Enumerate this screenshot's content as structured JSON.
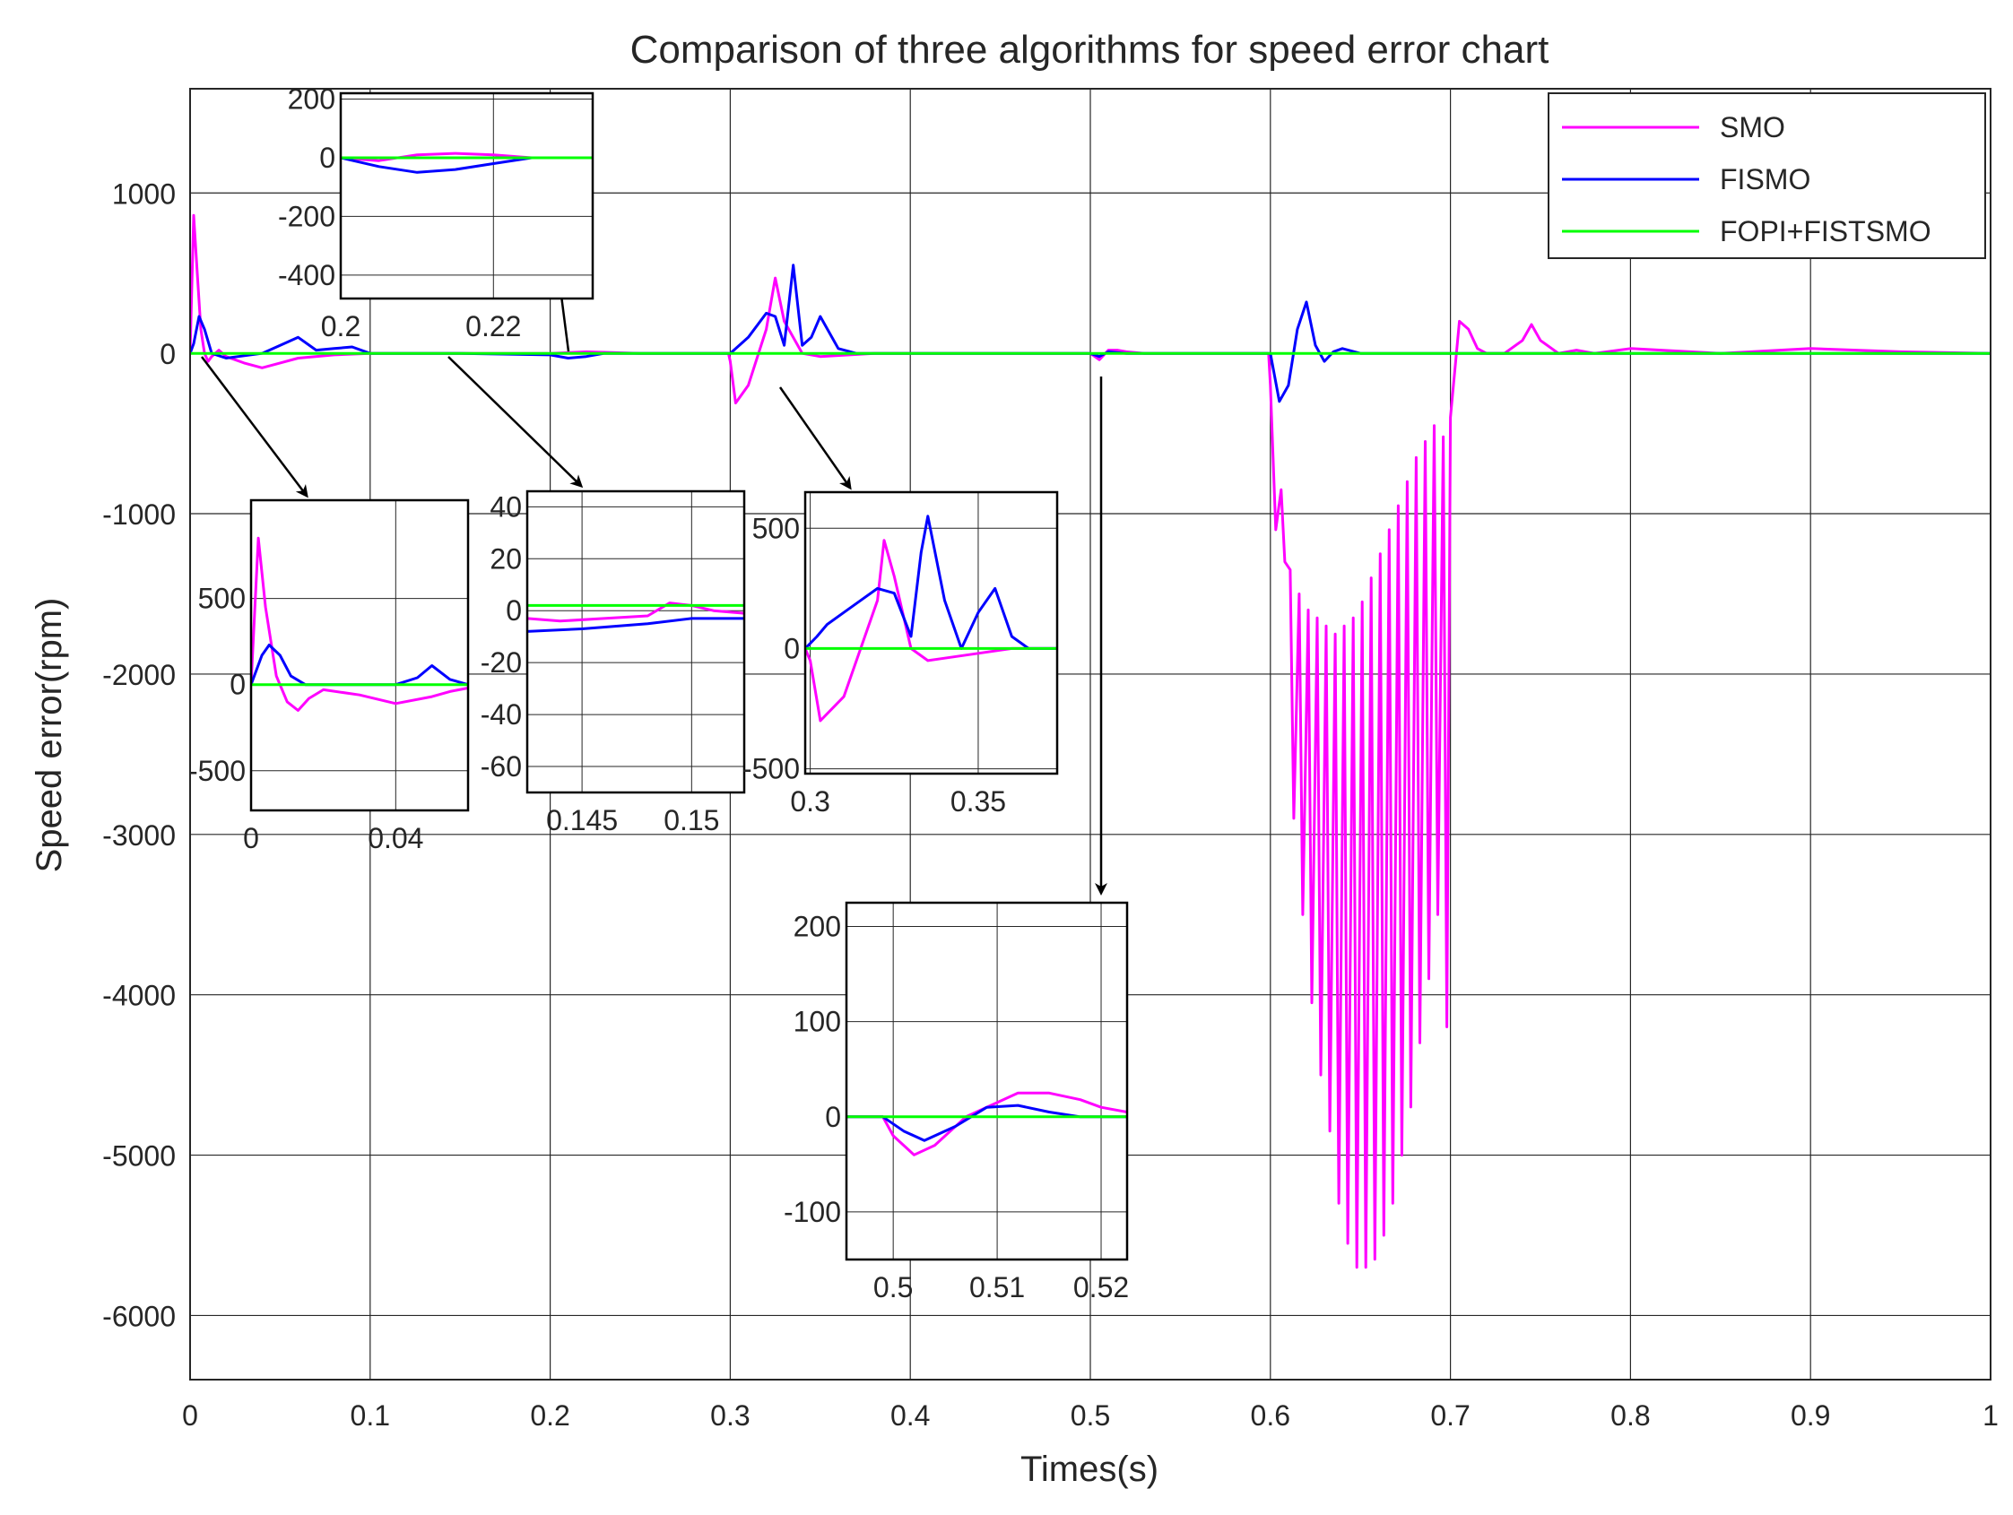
{
  "chart_data": {
    "type": "line",
    "title": "Comparison of three algorithms for speed error chart",
    "xlabel": "Times(s)",
    "ylabel": "Speed error(rpm)",
    "xlim": [
      0,
      1
    ],
    "ylim": [
      -6400,
      1650
    ],
    "x_ticks": [
      0,
      0.1,
      0.2,
      0.3,
      0.4,
      0.5,
      0.6,
      0.7,
      0.8,
      0.9,
      1
    ],
    "x_tick_labels": [
      "0",
      "0.1",
      "0.2",
      "0.3",
      "0.4",
      "0.5",
      "0.6",
      "0.7",
      "0.8",
      "0.9",
      "1"
    ],
    "y_ticks": [
      1000,
      0,
      -1000,
      -2000,
      -3000,
      -4000,
      -5000,
      -6000
    ],
    "y_tick_labels": [
      "1000",
      "0",
      "-1000",
      "-2000",
      "-3000",
      "-4000",
      "-5000",
      "-6000"
    ],
    "grid": true,
    "legend_position": "top-right",
    "colors": {
      "SMO": "#ff00ff",
      "FISMO": "#0000ff",
      "FOPI+FISTSMO": "#00ff00"
    },
    "series": [
      {
        "name": "SMO",
        "x": [
          0,
          0.002,
          0.004,
          0.006,
          0.008,
          0.01,
          0.012,
          0.016,
          0.02,
          0.03,
          0.04,
          0.05,
          0.06,
          0.08,
          0.1,
          0.15,
          0.2,
          0.22,
          0.25,
          0.299,
          0.3,
          0.303,
          0.31,
          0.32,
          0.325,
          0.33,
          0.34,
          0.35,
          0.38,
          0.4,
          0.5,
          0.505,
          0.51,
          0.515,
          0.52,
          0.53,
          0.599,
          0.6,
          0.603,
          0.606,
          0.608,
          0.611,
          0.613,
          0.616,
          0.618,
          0.621,
          0.623,
          0.626,
          0.628,
          0.631,
          0.633,
          0.636,
          0.638,
          0.641,
          0.643,
          0.646,
          0.648,
          0.651,
          0.653,
          0.656,
          0.658,
          0.661,
          0.663,
          0.666,
          0.668,
          0.671,
          0.673,
          0.676,
          0.678,
          0.681,
          0.683,
          0.686,
          0.688,
          0.691,
          0.693,
          0.696,
          0.698,
          0.7,
          0.705,
          0.71,
          0.715,
          0.72,
          0.73,
          0.74,
          0.745,
          0.75,
          0.76,
          0.77,
          0.78,
          0.8,
          0.85,
          0.9,
          0.95,
          1.0
        ],
        "y": [
          0,
          860,
          500,
          150,
          0,
          -50,
          -20,
          20,
          -20,
          -60,
          -90,
          -60,
          -30,
          -10,
          0,
          0,
          0,
          10,
          0,
          0,
          -50,
          -310,
          -200,
          150,
          470,
          200,
          0,
          -20,
          0,
          0,
          0,
          -40,
          20,
          20,
          10,
          0,
          0,
          -200,
          -1100,
          -850,
          -1300,
          -1350,
          -2900,
          -1500,
          -3500,
          -1600,
          -4050,
          -1650,
          -4500,
          -1700,
          -4850,
          -1750,
          -5300,
          -1700,
          -5550,
          -1650,
          -5700,
          -1550,
          -5700,
          -1400,
          -5650,
          -1250,
          -5500,
          -1100,
          -5300,
          -950,
          -5000,
          -800,
          -4700,
          -650,
          -4300,
          -550,
          -3900,
          -450,
          -3500,
          -520,
          -4200,
          -400,
          200,
          150,
          30,
          0,
          0,
          80,
          180,
          80,
          0,
          20,
          0,
          30,
          0,
          30,
          10,
          0
        ]
      },
      {
        "name": "FISMO",
        "x": [
          0,
          0.002,
          0.005,
          0.008,
          0.012,
          0.02,
          0.04,
          0.06,
          0.07,
          0.08,
          0.09,
          0.1,
          0.15,
          0.2,
          0.21,
          0.22,
          0.23,
          0.3,
          0.31,
          0.32,
          0.325,
          0.33,
          0.335,
          0.34,
          0.345,
          0.35,
          0.36,
          0.37,
          0.38,
          0.4,
          0.5,
          0.505,
          0.51,
          0.52,
          0.53,
          0.6,
          0.605,
          0.61,
          0.615,
          0.62,
          0.625,
          0.63,
          0.635,
          0.64,
          0.65,
          0.7,
          1.0
        ],
        "y": [
          0,
          60,
          230,
          150,
          0,
          -30,
          0,
          100,
          20,
          30,
          40,
          0,
          0,
          -10,
          -30,
          -20,
          0,
          0,
          100,
          250,
          230,
          50,
          550,
          50,
          100,
          230,
          30,
          0,
          0,
          0,
          0,
          -20,
          10,
          0,
          0,
          0,
          -300,
          -200,
          150,
          320,
          50,
          -50,
          10,
          30,
          0,
          0,
          0
        ]
      },
      {
        "name": "FOPI+FISTSMO",
        "x": [
          0,
          1.0
        ],
        "y": [
          0,
          0
        ]
      }
    ],
    "insets": [
      {
        "xlim": [
          0,
          0.06
        ],
        "ylim": [
          -730,
          1070
        ],
        "x_ticks": [
          0,
          0.04
        ],
        "x_tick_labels": [
          "0",
          "0.04"
        ],
        "y_ticks": [
          500,
          0,
          -500
        ],
        "y_tick_labels": [
          "500",
          "0",
          "-500"
        ],
        "series": [
          {
            "name": "SMO",
            "x": [
              0,
              0.002,
              0.004,
              0.007,
              0.01,
              0.013,
              0.016,
              0.02,
              0.03,
              0.04,
              0.05,
              0.055,
              0.06
            ],
            "y": [
              0,
              850,
              450,
              50,
              -100,
              -150,
              -80,
              -30,
              -60,
              -110,
              -70,
              -40,
              -20
            ]
          },
          {
            "name": "FISMO",
            "x": [
              0,
              0.003,
              0.005,
              0.008,
              0.011,
              0.015,
              0.02,
              0.04,
              0.046,
              0.05,
              0.055,
              0.06
            ],
            "y": [
              0,
              170,
              230,
              170,
              50,
              0,
              0,
              0,
              40,
              110,
              30,
              0
            ]
          },
          {
            "name": "FOPI+FISTSMO",
            "x": [
              0,
              0.06
            ],
            "y": [
              0,
              0
            ]
          }
        ]
      },
      {
        "xlim": [
          0.1425,
          0.1524
        ],
        "ylim": [
          -70,
          46
        ],
        "x_ticks": [
          0.145,
          0.15
        ],
        "x_tick_labels": [
          "0.145",
          "0.15"
        ],
        "y_ticks": [
          40,
          20,
          0,
          -20,
          -40,
          -60
        ],
        "y_tick_labels": [
          "40",
          "20",
          "0",
          "-20",
          "-40",
          "-60"
        ],
        "series": [
          {
            "name": "SMO",
            "x": [
              0.1425,
              0.144,
              0.146,
              0.148,
              0.149,
              0.15,
              0.151,
              0.1524
            ],
            "y": [
              -3,
              -4,
              -3,
              -2,
              3,
              2,
              0,
              -1
            ]
          },
          {
            "name": "FISMO",
            "x": [
              0.1425,
              0.145,
              0.148,
              0.15,
              0.1524
            ],
            "y": [
              -8,
              -7,
              -5,
              -3,
              -3
            ]
          },
          {
            "name": "FOPI+FISTSMO",
            "x": [
              0.1425,
              0.1524
            ],
            "y": [
              2,
              2
            ]
          }
        ]
      },
      {
        "xlim": [
          0.2,
          0.233
        ],
        "ylim": [
          -480,
          220
        ],
        "x_ticks": [
          0.2,
          0.22
        ],
        "x_tick_labels": [
          "0.2",
          "0.22"
        ],
        "y_ticks": [
          200,
          0,
          -200,
          -400
        ],
        "y_tick_labels": [
          "200",
          "0",
          "-200",
          "-400"
        ],
        "series": [
          {
            "name": "SMO",
            "x": [
              0.2,
              0.205,
              0.21,
              0.215,
              0.22,
              0.225,
              0.233
            ],
            "y": [
              0,
              -10,
              10,
              15,
              10,
              0,
              0
            ]
          },
          {
            "name": "FISMO",
            "x": [
              0.2,
              0.205,
              0.21,
              0.215,
              0.22,
              0.225,
              0.233
            ],
            "y": [
              0,
              -30,
              -50,
              -40,
              -20,
              0,
              0
            ]
          },
          {
            "name": "FOPI+FISTSMO",
            "x": [
              0.2,
              0.233
            ],
            "y": [
              0,
              0
            ]
          }
        ]
      },
      {
        "xlim": [
          0.2985,
          0.3735
        ],
        "ylim": [
          -520,
          650
        ],
        "x_ticks": [
          0.3,
          0.35
        ],
        "x_tick_labels": [
          "0.3",
          "0.35"
        ],
        "y_ticks": [
          500,
          0,
          -500
        ],
        "y_tick_labels": [
          "500",
          "0",
          "-500"
        ],
        "series": [
          {
            "name": "SMO",
            "x": [
              0.2985,
              0.3,
              0.303,
              0.31,
              0.32,
              0.322,
              0.325,
              0.33,
              0.335,
              0.34,
              0.35,
              0.36,
              0.3735
            ],
            "y": [
              0,
              -50,
              -300,
              -200,
              200,
              450,
              300,
              0,
              -50,
              -40,
              -20,
              0,
              0
            ]
          },
          {
            "name": "FISMO",
            "x": [
              0.2985,
              0.302,
              0.305,
              0.31,
              0.315,
              0.32,
              0.325,
              0.33,
              0.333,
              0.335,
              0.34,
              0.345,
              0.35,
              0.355,
              0.36,
              0.365,
              0.3735
            ],
            "y": [
              0,
              50,
              100,
              150,
              200,
              250,
              230,
              50,
              400,
              550,
              200,
              0,
              150,
              250,
              50,
              0,
              0
            ]
          },
          {
            "name": "FOPI+FISTSMO",
            "x": [
              0.2985,
              0.3735
            ],
            "y": [
              0,
              0
            ]
          }
        ]
      },
      {
        "xlim": [
          0.4955,
          0.5225
        ],
        "ylim": [
          -150,
          225
        ],
        "x_ticks": [
          0.5,
          0.51,
          0.52
        ],
        "x_tick_labels": [
          "0.5",
          "0.51",
          "0.52"
        ],
        "y_ticks": [
          200,
          100,
          0,
          -100
        ],
        "y_tick_labels": [
          "200",
          "100",
          "0",
          "-100"
        ],
        "series": [
          {
            "name": "SMO",
            "x": [
              0.4955,
              0.499,
              0.5,
              0.502,
              0.504,
              0.507,
              0.51,
              0.512,
              0.515,
              0.518,
              0.52,
              0.5225
            ],
            "y": [
              0,
              0,
              -20,
              -40,
              -30,
              0,
              15,
              25,
              25,
              18,
              10,
              5
            ]
          },
          {
            "name": "FISMO",
            "x": [
              0.4955,
              0.499,
              0.501,
              0.503,
              0.506,
              0.509,
              0.512,
              0.515,
              0.518,
              0.5225
            ],
            "y": [
              0,
              0,
              -15,
              -25,
              -10,
              10,
              12,
              5,
              0,
              0
            ]
          },
          {
            "name": "FOPI+FISTSMO",
            "x": [
              0.4955,
              0.5225
            ],
            "y": [
              0,
              0
            ]
          }
        ]
      }
    ]
  }
}
